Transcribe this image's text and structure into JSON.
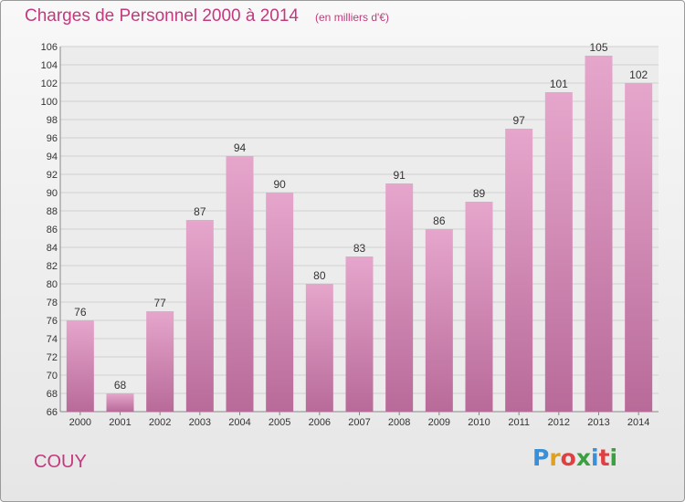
{
  "header": {
    "title": "Charges de Personnel 2000 à 2014",
    "subtitle": "(en milliers d'€)"
  },
  "footer": {
    "commune": "COUY",
    "logo": {
      "text": "Proxiti",
      "letter_colors": [
        "#3a8fd6",
        "#e0a020",
        "#e04040",
        "#3aa040",
        "#3a8fd6",
        "#e04040",
        "#3aa040"
      ]
    }
  },
  "colors": {
    "bar_top": "#e6a6cc",
    "bar_bottom": "#b86a99",
    "grid": "#d0d0d0",
    "accent": "#c4397e"
  },
  "chart_data": {
    "type": "bar",
    "categories": [
      "2000",
      "2001",
      "2002",
      "2003",
      "2004",
      "2005",
      "2006",
      "2007",
      "2008",
      "2009",
      "2010",
      "2011",
      "2012",
      "2013",
      "2014"
    ],
    "values": [
      76,
      68,
      77,
      87,
      94,
      90,
      80,
      83,
      91,
      86,
      89,
      97,
      101,
      105,
      102
    ],
    "data_labels": [
      "76",
      "68",
      "77",
      "87",
      "94",
      "90",
      "80",
      "83",
      "91",
      "86",
      "89",
      "97",
      "101",
      "105",
      "102"
    ],
    "title": "Charges de Personnel 2000 à 2014",
    "subtitle": "(en milliers d'€)",
    "xlabel": "",
    "ylabel": "",
    "ylim": [
      66,
      106
    ],
    "yticks": [
      "66",
      "68",
      "70",
      "72",
      "74",
      "76",
      "78",
      "80",
      "82",
      "84",
      "86",
      "88",
      "90",
      "92",
      "94",
      "96",
      "98",
      "100",
      "102",
      "104",
      "106"
    ],
    "grid": true
  }
}
